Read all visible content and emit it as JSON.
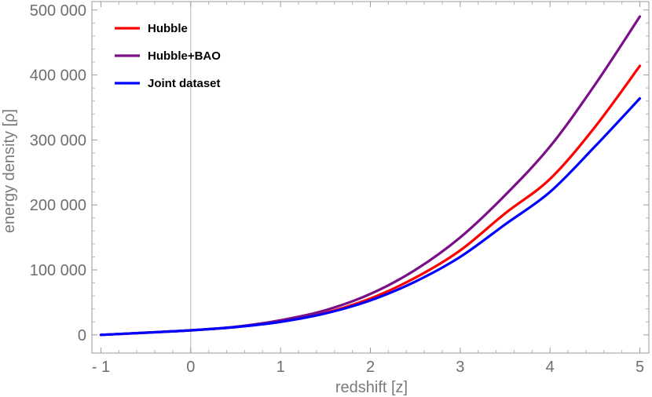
{
  "chart_data": {
    "type": "line",
    "xlabel": "redshift [z]",
    "ylabel": "energy density [ρ]",
    "xlim": [
      -1.1,
      5.1
    ],
    "ylim": [
      -28000,
      513000
    ],
    "x_ticks": [
      -1,
      0,
      1,
      2,
      3,
      4,
      5
    ],
    "x_tick_labels": [
      "- 1",
      "0",
      "1",
      "2",
      "3",
      "4",
      "5"
    ],
    "y_ticks": [
      0,
      100000,
      200000,
      300000,
      400000,
      500000
    ],
    "y_tick_labels": [
      "0",
      "100 000",
      "200 000",
      "300 000",
      "400 000",
      "500 000"
    ],
    "legend_position": "top-left",
    "grid": false,
    "x": [
      -1,
      -0.5,
      0,
      0.5,
      1,
      1.5,
      2,
      2.5,
      3,
      3.5,
      4,
      4.5,
      5
    ],
    "series": [
      {
        "name": "Hubble",
        "color": "#ff0000",
        "values": [
          0,
          3400,
          7000,
          12000,
          20500,
          34000,
          56000,
          88000,
          130000,
          187000,
          240000,
          320000,
          414000
        ]
      },
      {
        "name": "Hubble+BAO",
        "color": "#7b0f87",
        "values": [
          0,
          3300,
          7000,
          12500,
          22500,
          38000,
          63000,
          100000,
          150000,
          215000,
          290000,
          385000,
          490000
        ]
      },
      {
        "name": "Joint dataset",
        "color": "#0000ff",
        "values": [
          0,
          3400,
          7000,
          12000,
          20000,
          33000,
          53000,
          82000,
          120000,
          170000,
          220000,
          290000,
          364000
        ]
      }
    ]
  }
}
